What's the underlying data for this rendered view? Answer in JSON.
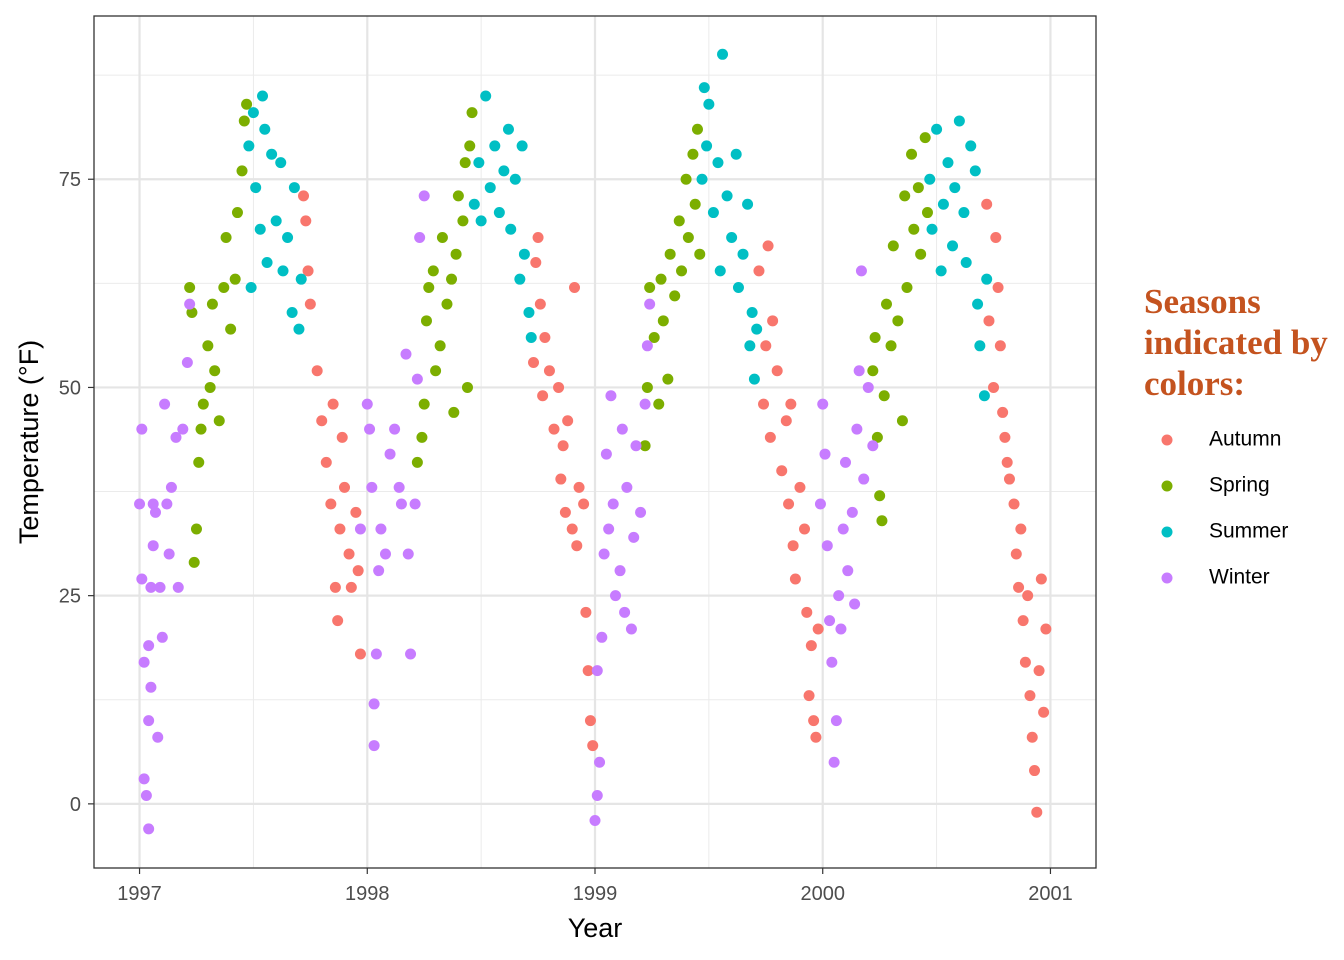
{
  "chart_data": {
    "type": "scatter",
    "x_label": "Year",
    "y_label": "Temperature (°F)",
    "legend_title": "Seasons indicated by colors:",
    "legend_position": "right",
    "xlim": [
      1996.8,
      2001.2
    ],
    "xticks": [
      1997,
      1998,
      1999,
      2000,
      2001
    ],
    "xminorticks": [
      1997.5,
      1998.5,
      1999.5,
      2000.5
    ],
    "ylim": [
      -7.7,
      94.6
    ],
    "yticks": [
      0,
      25,
      50,
      75
    ],
    "yminorticks": [
      12.5,
      37.5,
      62.5,
      87.5
    ],
    "grid": true,
    "series": [
      {
        "name": "Autumn",
        "color": "#F8766D",
        "x": [
          1997.72,
          1997.73,
          1997.74,
          1997.75,
          1997.78,
          1997.8,
          1997.82,
          1997.84,
          1997.85,
          1997.86,
          1997.87,
          1997.88,
          1997.89,
          1997.9,
          1997.92,
          1997.93,
          1997.95,
          1997.96,
          1997.97,
          1998.73,
          1998.74,
          1998.75,
          1998.76,
          1998.77,
          1998.78,
          1998.8,
          1998.82,
          1998.84,
          1998.85,
          1998.86,
          1998.87,
          1998.88,
          1998.9,
          1998.91,
          1998.92,
          1998.93,
          1998.95,
          1998.96,
          1998.97,
          1998.98,
          1998.99,
          1999.72,
          1999.74,
          1999.75,
          1999.76,
          1999.77,
          1999.78,
          1999.8,
          1999.82,
          1999.84,
          1999.85,
          1999.86,
          1999.87,
          1999.88,
          1999.9,
          1999.92,
          1999.93,
          1999.94,
          1999.95,
          1999.96,
          1999.97,
          1999.98,
          2000.72,
          2000.73,
          2000.75,
          2000.76,
          2000.77,
          2000.78,
          2000.79,
          2000.8,
          2000.81,
          2000.82,
          2000.84,
          2000.85,
          2000.86,
          2000.87,
          2000.88,
          2000.89,
          2000.9,
          2000.91,
          2000.92,
          2000.93,
          2000.94,
          2000.95,
          2000.96,
          2000.97,
          2000.98
        ],
        "values": [
          73,
          70,
          64,
          60,
          52,
          46,
          41,
          36,
          48,
          26,
          22,
          33,
          44,
          38,
          30,
          26,
          35,
          28,
          18,
          53,
          65,
          68,
          60,
          49,
          56,
          52,
          45,
          50,
          39,
          43,
          35,
          46,
          33,
          62,
          31,
          38,
          36,
          23,
          16,
          10,
          7,
          64,
          48,
          55,
          67,
          44,
          58,
          52,
          40,
          46,
          36,
          48,
          31,
          27,
          38,
          33,
          23,
          13,
          19,
          10,
          8,
          21,
          72,
          58,
          50,
          68,
          62,
          55,
          47,
          44,
          41,
          39,
          36,
          30,
          26,
          33,
          22,
          17,
          25,
          13,
          8,
          4,
          -1,
          16,
          27,
          11,
          21
        ]
      },
      {
        "name": "Spring",
        "color": "#7CAE00",
        "x": [
          1997.22,
          1997.23,
          1997.24,
          1997.25,
          1997.26,
          1997.27,
          1997.28,
          1997.3,
          1997.31,
          1997.32,
          1997.33,
          1997.35,
          1997.37,
          1997.38,
          1997.4,
          1997.42,
          1997.43,
          1997.45,
          1997.46,
          1997.47,
          1998.22,
          1998.24,
          1998.25,
          1998.26,
          1998.27,
          1998.29,
          1998.3,
          1998.32,
          1998.33,
          1998.35,
          1998.37,
          1998.38,
          1998.39,
          1998.4,
          1998.42,
          1998.43,
          1998.45,
          1998.46,
          1998.44,
          1999.22,
          1999.23,
          1999.24,
          1999.26,
          1999.28,
          1999.29,
          1999.3,
          1999.32,
          1999.33,
          1999.35,
          1999.37,
          1999.38,
          1999.4,
          1999.41,
          1999.43,
          1999.44,
          1999.45,
          1999.46,
          2000.22,
          2000.23,
          2000.24,
          2000.25,
          2000.26,
          2000.27,
          2000.28,
          2000.3,
          2000.31,
          2000.33,
          2000.35,
          2000.36,
          2000.37,
          2000.39,
          2000.4,
          2000.42,
          2000.43,
          2000.45,
          2000.46
        ],
        "values": [
          62,
          59,
          29,
          33,
          41,
          45,
          48,
          55,
          50,
          60,
          52,
          46,
          62,
          68,
          57,
          63,
          71,
          76,
          82,
          84,
          41,
          44,
          48,
          58,
          62,
          64,
          52,
          55,
          68,
          60,
          63,
          47,
          66,
          73,
          70,
          77,
          79,
          83,
          50,
          43,
          50,
          62,
          56,
          48,
          63,
          58,
          51,
          66,
          61,
          70,
          64,
          75,
          68,
          78,
          72,
          81,
          66,
          52,
          56,
          44,
          37,
          34,
          49,
          60,
          55,
          67,
          58,
          46,
          73,
          62,
          78,
          69,
          74,
          66,
          80,
          71
        ]
      },
      {
        "name": "Summer",
        "color": "#00BFC4",
        "x": [
          1997.48,
          1997.49,
          1997.5,
          1997.51,
          1997.53,
          1997.54,
          1997.55,
          1997.56,
          1997.58,
          1997.6,
          1997.62,
          1997.63,
          1997.65,
          1997.67,
          1997.68,
          1997.7,
          1997.71,
          1998.47,
          1998.49,
          1998.5,
          1998.52,
          1998.54,
          1998.56,
          1998.58,
          1998.6,
          1998.62,
          1998.63,
          1998.65,
          1998.67,
          1998.68,
          1998.69,
          1998.71,
          1998.72,
          1999.47,
          1999.48,
          1999.49,
          1999.5,
          1999.52,
          1999.54,
          1999.55,
          1999.56,
          1999.58,
          1999.6,
          1999.62,
          1999.63,
          1999.65,
          1999.67,
          1999.68,
          1999.69,
          1999.7,
          1999.71,
          2000.47,
          2000.48,
          2000.5,
          2000.52,
          2000.53,
          2000.55,
          2000.57,
          2000.58,
          2000.6,
          2000.62,
          2000.63,
          2000.65,
          2000.67,
          2000.68,
          2000.69,
          2000.71,
          2000.72
        ],
        "values": [
          79,
          62,
          83,
          74,
          69,
          85,
          81,
          65,
          78,
          70,
          77,
          64,
          68,
          59,
          74,
          57,
          63,
          72,
          77,
          70,
          85,
          74,
          79,
          71,
          76,
          81,
          69,
          75,
          63,
          79,
          66,
          59,
          56,
          75,
          86,
          79,
          84,
          71,
          77,
          64,
          90,
          73,
          68,
          78,
          62,
          66,
          72,
          55,
          59,
          51,
          57,
          75,
          69,
          81,
          64,
          72,
          77,
          67,
          74,
          82,
          71,
          65,
          79,
          76,
          60,
          55,
          49,
          63
        ]
      },
      {
        "name": "Winter",
        "color": "#C77CFF",
        "x": [
          1997.0,
          1997.01,
          1997.01,
          1997.02,
          1997.02,
          1997.03,
          1997.04,
          1997.04,
          1997.05,
          1997.04,
          1997.06,
          1997.06,
          1997.05,
          1997.07,
          1997.08,
          1997.09,
          1997.1,
          1997.11,
          1997.12,
          1997.13,
          1997.14,
          1997.16,
          1997.17,
          1997.19,
          1997.21,
          1997.22,
          1997.97,
          1998.0,
          1998.01,
          1998.02,
          1998.03,
          1998.03,
          1998.04,
          1998.05,
          1998.06,
          1998.08,
          1998.1,
          1998.12,
          1998.14,
          1998.15,
          1998.17,
          1998.18,
          1998.19,
          1998.21,
          1998.22,
          1998.23,
          1998.25,
          1999.0,
          1999.01,
          1999.01,
          1999.02,
          1999.03,
          1999.04,
          1999.05,
          1999.06,
          1999.07,
          1999.08,
          1999.09,
          1999.11,
          1999.12,
          1999.13,
          1999.14,
          1999.16,
          1999.17,
          1999.18,
          1999.2,
          1999.22,
          1999.23,
          1999.24,
          1999.99,
          2000.0,
          2000.01,
          2000.02,
          2000.03,
          2000.04,
          2000.05,
          2000.06,
          2000.07,
          2000.08,
          2000.09,
          2000.1,
          2000.11,
          2000.13,
          2000.14,
          2000.15,
          2000.16,
          2000.17,
          2000.18,
          2000.2,
          2000.22
        ],
        "values": [
          36,
          45,
          27,
          17,
          3,
          1,
          -3,
          19,
          26,
          10,
          36,
          31,
          14,
          35,
          8,
          26,
          20,
          48,
          36,
          30,
          38,
          44,
          26,
          45,
          53,
          60,
          33,
          48,
          45,
          38,
          12,
          7,
          18,
          28,
          33,
          30,
          42,
          45,
          38,
          36,
          54,
          30,
          18,
          36,
          51,
          68,
          73,
          -2,
          1,
          16,
          5,
          20,
          30,
          42,
          33,
          49,
          36,
          25,
          28,
          45,
          23,
          38,
          21,
          32,
          43,
          35,
          48,
          55,
          60,
          36,
          48,
          42,
          31,
          22,
          17,
          5,
          10,
          25,
          21,
          33,
          41,
          28,
          35,
          24,
          45,
          52,
          64,
          39,
          50,
          43
        ]
      }
    ]
  }
}
